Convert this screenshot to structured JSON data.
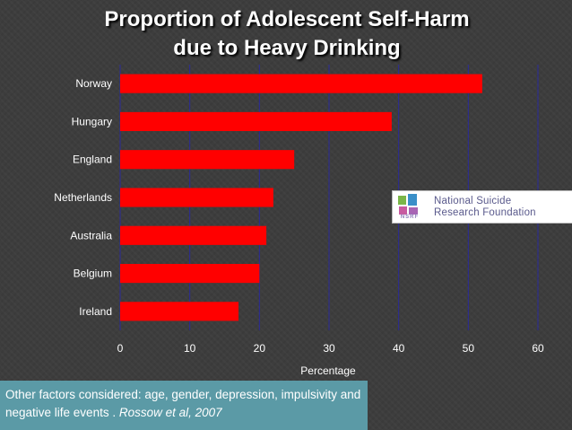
{
  "title": {
    "line1": "Proportion of Adolescent Self-Harm",
    "line2": "due to Heavy Drinking"
  },
  "chart_data": {
    "type": "bar",
    "orientation": "horizontal",
    "title": "Proportion of Adolescent Self-Harm due to Heavy Drinking",
    "categories": [
      "Norway",
      "Hungary",
      "England",
      "Netherlands",
      "Australia",
      "Belgium",
      "Ireland"
    ],
    "values": [
      52,
      39,
      25,
      22,
      21,
      20,
      17
    ],
    "xlabel": "Percentage",
    "ylabel": "",
    "xlim": [
      0,
      60
    ],
    "xticks": [
      0,
      10,
      20,
      30,
      40,
      50,
      60
    ],
    "grid": true,
    "bar_color": "#ff0000",
    "grid_color": "#2a2a9a"
  },
  "logo": {
    "line1": "National Suicide",
    "line2": "Research Foundation",
    "abbr": "NSRF"
  },
  "note": {
    "text": "Other factors considered: age, gender, depression, impulsivity and negative life events . ",
    "citation": "Rossow et al, 2007"
  }
}
